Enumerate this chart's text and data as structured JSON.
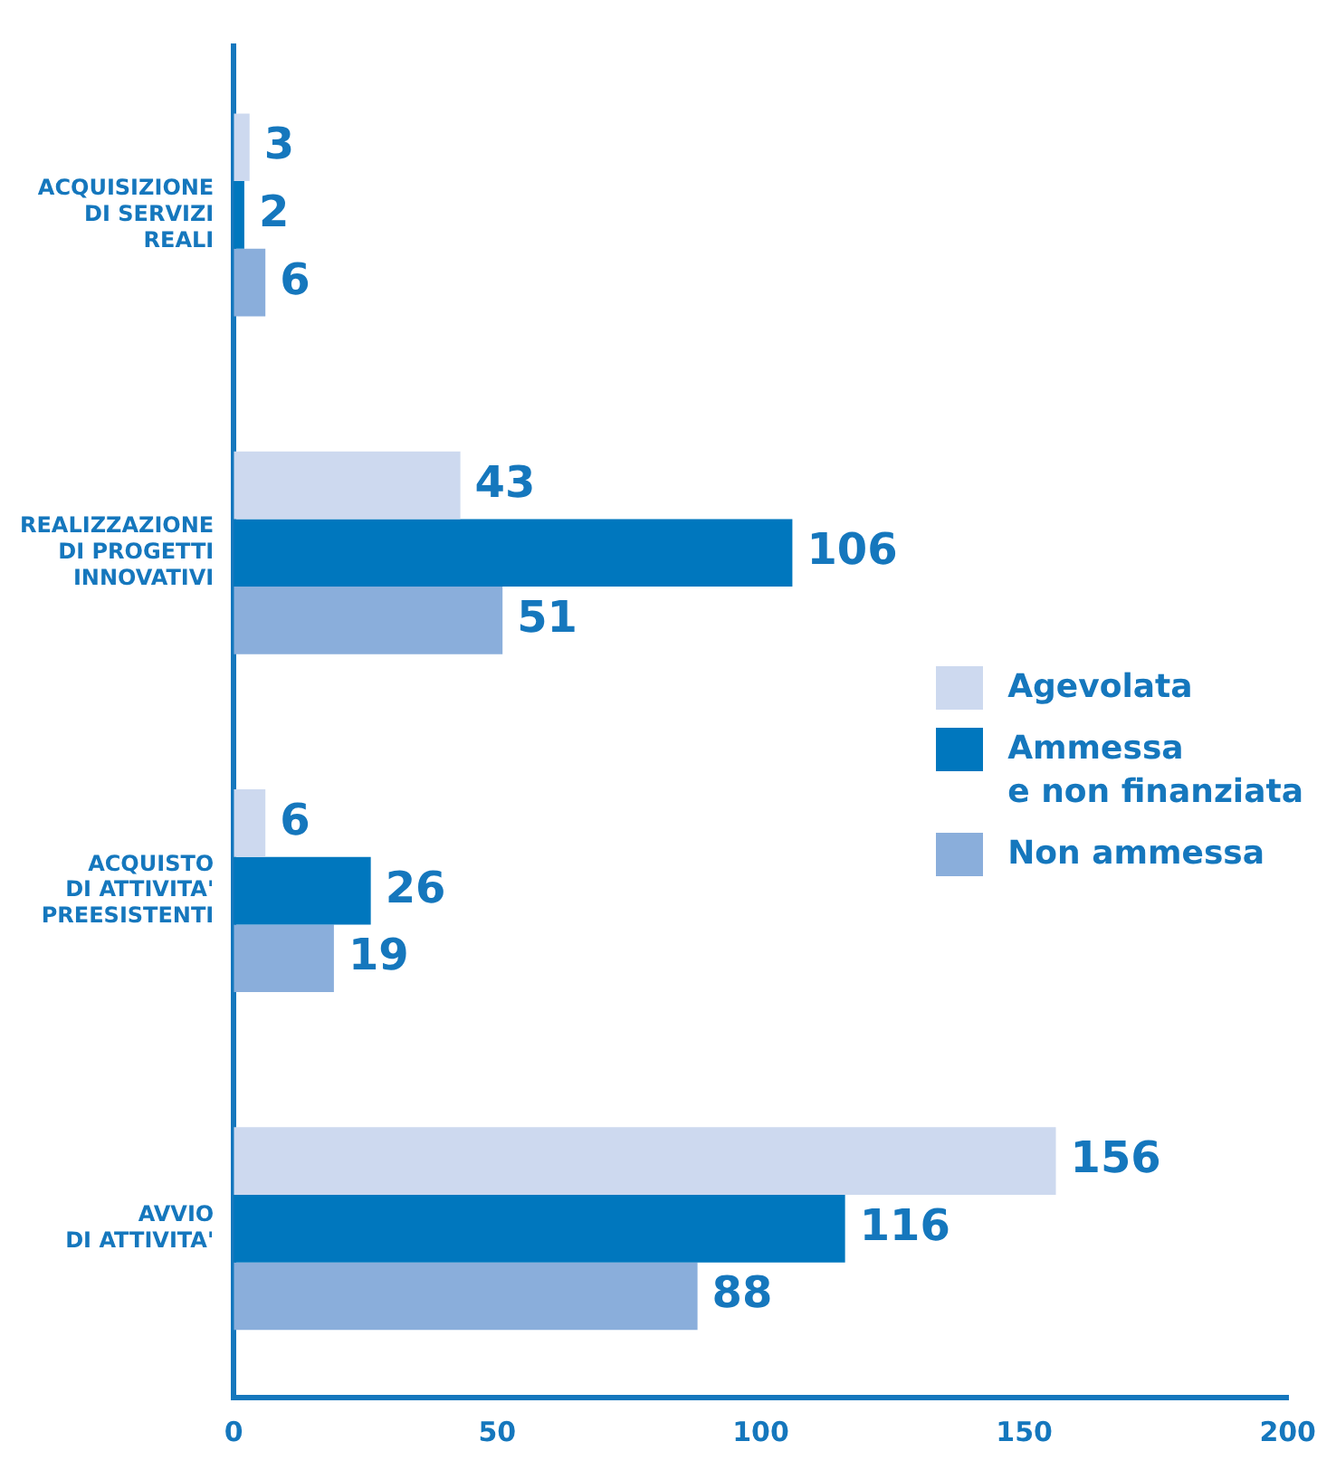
{
  "chart_data": {
    "type": "bar",
    "orientation": "horizontal",
    "categories": [
      "ACQUISIZIONE\nDI SERVIZI\nREALI",
      "REALIZZAZIONE\nDI PROGETTI\nINNOVATIVI",
      "ACQUISTO\nDI ATTIVITA'\nPREESISTENTI",
      "AVVIO\nDI ATTIVITA'"
    ],
    "series": [
      {
        "name": "Agevolata",
        "color": "#cdd9ef",
        "values": [
          3,
          43,
          6,
          156
        ]
      },
      {
        "name": "Ammessa\ne non finanziata",
        "color": "#0077be",
        "values": [
          2,
          106,
          26,
          116
        ]
      },
      {
        "name": "Non ammessa",
        "color": "#8aaedb",
        "values": [
          6,
          51,
          19,
          88
        ]
      }
    ],
    "xlim": [
      0,
      200
    ],
    "xticks": [
      0,
      50,
      100,
      150,
      200
    ],
    "data_labels": true,
    "grid": false,
    "legend": "right"
  }
}
